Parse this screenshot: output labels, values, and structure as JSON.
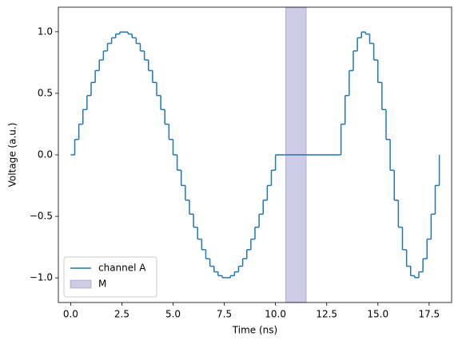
{
  "chart_data": {
    "type": "step",
    "x_label": "Time (ns)",
    "y_label": "Voltage (a.u.)",
    "x": [
      0,
      0.2,
      0.4,
      0.6,
      0.8,
      1.0,
      1.2,
      1.4,
      1.6,
      1.8,
      2.0,
      2.2,
      2.4,
      2.6,
      2.8,
      3.0,
      3.2,
      3.4,
      3.6,
      3.8,
      4.0,
      4.2,
      4.4,
      4.6,
      4.8,
      5.0,
      5.2,
      5.4,
      5.6,
      5.8,
      6.0,
      6.2,
      6.4,
      6.6,
      6.8,
      7.0,
      7.2,
      7.4,
      7.6,
      7.8,
      8.0,
      8.2,
      8.4,
      8.6,
      8.8,
      9.0,
      9.2,
      9.4,
      9.6,
      9.8,
      10.0,
      13.0,
      13.2,
      13.4,
      13.6,
      13.8,
      14.0,
      14.2,
      14.4,
      14.6,
      14.8,
      15.0,
      15.2,
      15.4,
      15.6,
      15.8,
      16.0,
      16.2,
      16.4,
      16.6,
      16.8,
      17.0,
      17.2,
      17.4,
      17.6,
      17.8,
      18.0
    ],
    "series": [
      {
        "name": "channel A",
        "color": "#1f77b4",
        "values": [
          0,
          0.125,
          0.249,
          0.368,
          0.482,
          0.588,
          0.685,
          0.771,
          0.844,
          0.905,
          0.951,
          0.982,
          0.998,
          0.998,
          0.982,
          0.951,
          0.905,
          0.844,
          0.771,
          0.685,
          0.588,
          0.482,
          0.368,
          0.249,
          0.125,
          0,
          -0.125,
          -0.249,
          -0.368,
          -0.482,
          -0.588,
          -0.685,
          -0.771,
          -0.844,
          -0.905,
          -0.951,
          -0.982,
          -0.998,
          -0.998,
          -0.982,
          -0.951,
          -0.905,
          -0.844,
          -0.771,
          -0.685,
          -0.588,
          -0.482,
          -0.368,
          -0.249,
          -0.125,
          0,
          0,
          0.249,
          0.482,
          0.685,
          0.844,
          0.951,
          0.998,
          0.982,
          0.905,
          0.771,
          0.588,
          0.368,
          0.125,
          -0.125,
          -0.368,
          -0.588,
          -0.771,
          -0.905,
          -0.982,
          -0.998,
          -0.951,
          -0.844,
          -0.685,
          -0.482,
          -0.249,
          0
        ]
      }
    ],
    "spans": [
      {
        "name": "M",
        "xmin": 10.5,
        "xmax": 11.5,
        "color": "#8080c0"
      }
    ],
    "xlim": [
      -0.6,
      18.6
    ],
    "ylim": [
      -1.2,
      1.2
    ],
    "xticks": [
      {
        "value": 0,
        "label": "0.0"
      },
      2.5,
      {
        "value": 5,
        "label": "5.0"
      },
      7.5,
      {
        "value": 10,
        "label": "10.0"
      },
      12.5,
      {
        "value": 15,
        "label": "15.0"
      },
      17.5
    ],
    "yticks": [
      {
        "value": -1,
        "label": "−1.0"
      },
      {
        "value": -0.5,
        "label": "−0.5"
      },
      {
        "value": 0,
        "label": "0.0"
      },
      0.5,
      {
        "value": 1,
        "label": "1.0"
      }
    ],
    "legend": "lower left"
  }
}
